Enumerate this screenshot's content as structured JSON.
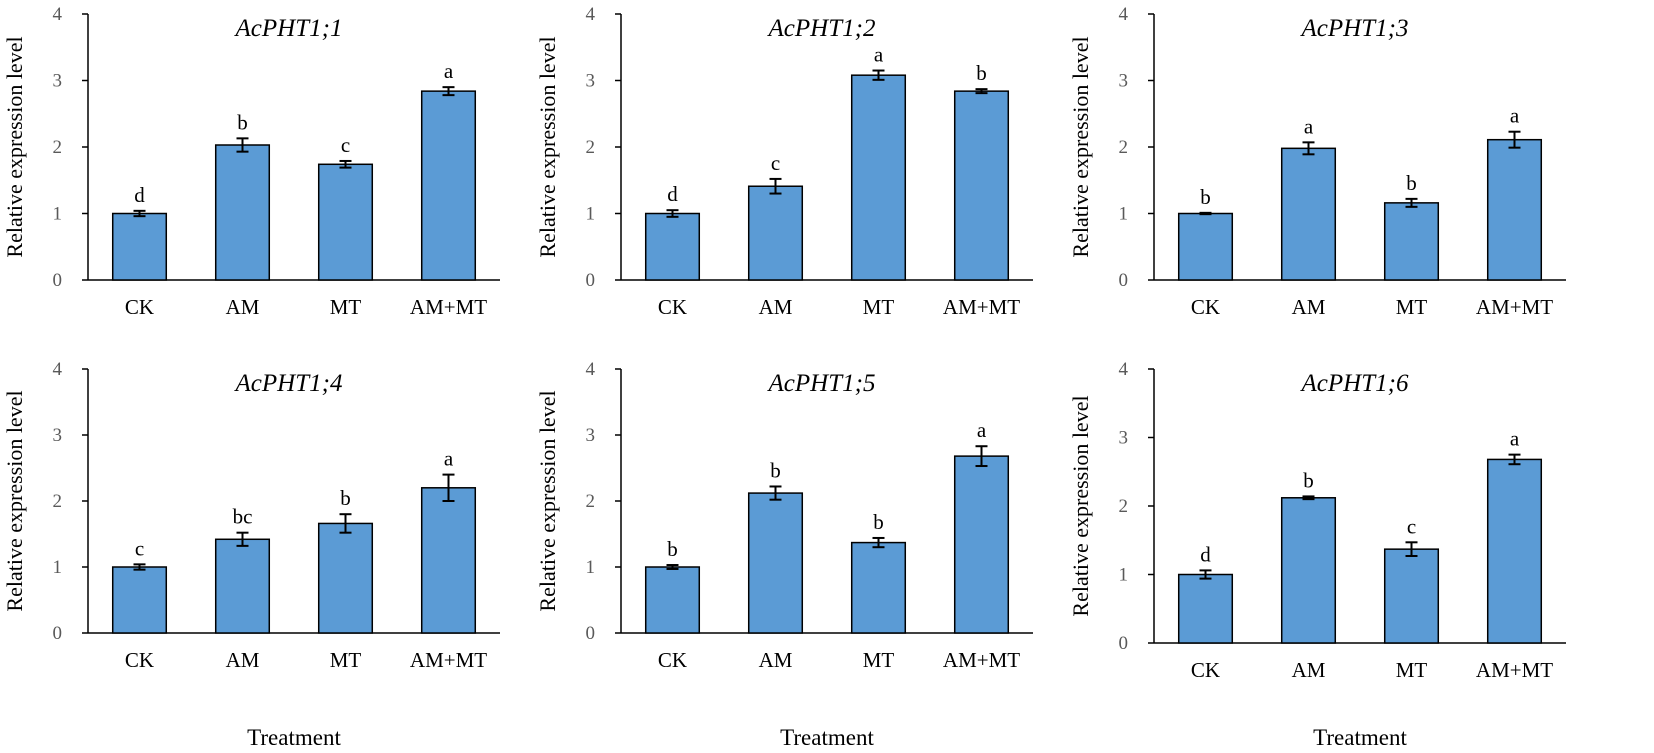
{
  "colors": {
    "bar_fill": "#5B9BD5",
    "bar_stroke": "#000000",
    "axis": "#000000",
    "text": "#000000",
    "tick_label": "#595959"
  },
  "chart_data": [
    {
      "type": "bar",
      "title": "AcPHT1;1",
      "ylabel": "Relative expression level",
      "xlabel": "",
      "ylim": [
        0,
        4
      ],
      "yticks": [
        "0",
        "1",
        "2",
        "3",
        "4"
      ],
      "categories": [
        "CK",
        "AM",
        "MT",
        "AM+MT"
      ],
      "values": [
        1.0,
        2.03,
        1.74,
        2.84
      ],
      "errors": [
        0.04,
        0.1,
        0.05,
        0.06
      ],
      "significance": [
        "d",
        "b",
        "c",
        "a"
      ]
    },
    {
      "type": "bar",
      "title": "AcPHT1;2",
      "ylabel": "Relative expression level",
      "xlabel": "",
      "ylim": [
        0,
        4
      ],
      "yticks": [
        "0",
        "1",
        "2",
        "3",
        "4"
      ],
      "categories": [
        "CK",
        "AM",
        "MT",
        "AM+MT"
      ],
      "values": [
        1.0,
        1.41,
        3.08,
        2.84
      ],
      "errors": [
        0.05,
        0.11,
        0.07,
        0.03
      ],
      "significance": [
        "d",
        "c",
        "a",
        "b"
      ]
    },
    {
      "type": "bar",
      "title": "AcPHT1;3",
      "ylabel": "Relative expression level",
      "xlabel": "",
      "ylim": [
        0,
        4
      ],
      "yticks": [
        "0",
        "1",
        "2",
        "3",
        "4"
      ],
      "categories": [
        "CK",
        "AM",
        "MT",
        "AM+MT"
      ],
      "values": [
        1.0,
        1.98,
        1.16,
        2.11
      ],
      "errors": [
        0.01,
        0.09,
        0.06,
        0.12
      ],
      "significance": [
        "b",
        "a",
        "b",
        "a"
      ]
    },
    {
      "type": "bar",
      "title": "AcPHT1;4",
      "ylabel": "Relative expression level",
      "xlabel": "Treatment",
      "ylim": [
        0,
        4
      ],
      "yticks": [
        "0",
        "1",
        "2",
        "3",
        "4"
      ],
      "categories": [
        "CK",
        "AM",
        "MT",
        "AM+MT"
      ],
      "values": [
        1.0,
        1.42,
        1.66,
        2.2
      ],
      "errors": [
        0.04,
        0.1,
        0.14,
        0.2
      ],
      "significance": [
        "c",
        "bc",
        "b",
        "a"
      ]
    },
    {
      "type": "bar",
      "title": "AcPHT1;5",
      "ylabel": "Relative expression level",
      "xlabel": "Treatment",
      "ylim": [
        0,
        4
      ],
      "yticks": [
        "0",
        "1",
        "2",
        "3",
        "4"
      ],
      "categories": [
        "CK",
        "AM",
        "MT",
        "AM+MT"
      ],
      "values": [
        1.0,
        2.12,
        1.37,
        2.68
      ],
      "errors": [
        0.03,
        0.1,
        0.07,
        0.15
      ],
      "significance": [
        "b",
        "b",
        "b",
        "a"
      ]
    },
    {
      "type": "bar",
      "title": "AcPHT1;6",
      "ylabel": "Relative expression level",
      "xlabel": "Treatment",
      "ylim": [
        0,
        4
      ],
      "yticks": [
        "0",
        "1",
        "2",
        "3",
        "4"
      ],
      "categories": [
        "CK",
        "AM",
        "MT",
        "AM+MT"
      ],
      "values": [
        1.0,
        2.12,
        1.37,
        2.68
      ],
      "errors": [
        0.06,
        0.02,
        0.1,
        0.07
      ],
      "significance": [
        "d",
        "b",
        "c",
        "a"
      ]
    }
  ]
}
